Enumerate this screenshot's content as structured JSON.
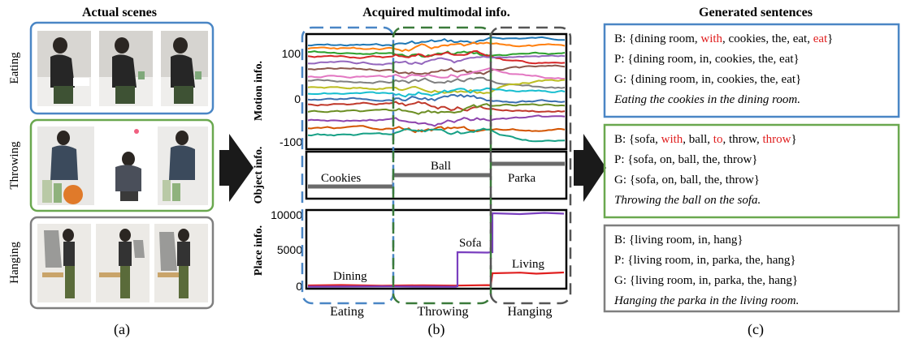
{
  "panel_a": {
    "title": "Actual scenes",
    "caption": "(a)",
    "scenes": [
      {
        "label": "Eating",
        "border_color": "#4a86c5"
      },
      {
        "label": "Throwing",
        "border_color": "#6aa84f"
      },
      {
        "label": "Hanging",
        "border_color": "#7f7f7f"
      }
    ]
  },
  "panel_b": {
    "title": "Acquired multimodal info.",
    "caption": "(b)",
    "motion": {
      "ylabel": "Motion info.",
      "ticks": [
        "100",
        "0",
        "-100"
      ]
    },
    "object": {
      "ylabel": "Object info.",
      "labels": [
        "Cookies",
        "Ball",
        "Parka"
      ]
    },
    "place": {
      "ylabel": "Place info.",
      "ticks": [
        "10000",
        "5000",
        "0"
      ],
      "labels": [
        "Dining",
        "Sofa",
        "Living"
      ]
    },
    "segments": [
      {
        "label": "Eating",
        "color": "#4a86c5"
      },
      {
        "label": "Throwing",
        "color": "#3a7a3a"
      },
      {
        "label": "Hanging",
        "color": "#555555"
      }
    ]
  },
  "panel_c": {
    "title": "Generated sentences",
    "caption": "(c)",
    "boxes": [
      {
        "border_color": "#4a86c5",
        "lines": [
          {
            "prefix": "B: {",
            "words": [
              "dining room",
              "with",
              "cookies",
              "the",
              "eat",
              "eat"
            ],
            "red": [
              false,
              true,
              false,
              false,
              false,
              true
            ],
            "suffix": "}"
          },
          {
            "prefix": "P: {",
            "words": [
              "dining room",
              "in",
              "cookies",
              "the",
              "eat"
            ],
            "red": [
              false,
              false,
              false,
              false,
              false
            ],
            "suffix": "}"
          },
          {
            "prefix": "G: {",
            "words": [
              "dining room",
              "in",
              "cookies",
              "the",
              "eat"
            ],
            "red": [
              false,
              false,
              false,
              false,
              false
            ],
            "suffix": "}"
          }
        ],
        "sentence": "Eating the cookies in the dining room."
      },
      {
        "border_color": "#6aa84f",
        "lines": [
          {
            "prefix": "B: {",
            "words": [
              "sofa",
              "with",
              "ball",
              "to",
              "throw",
              "throw"
            ],
            "red": [
              false,
              true,
              false,
              true,
              false,
              true
            ],
            "suffix": "}"
          },
          {
            "prefix": "P: {",
            "words": [
              "sofa",
              "on",
              "ball",
              "the",
              "throw"
            ],
            "red": [
              false,
              false,
              false,
              false,
              false
            ],
            "suffix": "}"
          },
          {
            "prefix": "G: {",
            "words": [
              "sofa",
              "on",
              "ball",
              "the",
              "throw"
            ],
            "red": [
              false,
              false,
              false,
              false,
              false
            ],
            "suffix": "}"
          }
        ],
        "sentence": "Throwing the ball on the sofa."
      },
      {
        "border_color": "#7f7f7f",
        "lines": [
          {
            "prefix": "B: {",
            "words": [
              "living room",
              "in",
              "hang"
            ],
            "red": [
              false,
              false,
              false
            ],
            "suffix": "}"
          },
          {
            "prefix": "P: {",
            "words": [
              "living room",
              "in",
              "parka",
              "the",
              "hang"
            ],
            "red": [
              false,
              false,
              false,
              false,
              false
            ],
            "suffix": "}"
          },
          {
            "prefix": "G: {",
            "words": [
              "living room",
              "in",
              "parka",
              "the",
              "hang"
            ],
            "red": [
              false,
              false,
              false,
              false,
              false
            ],
            "suffix": "}"
          }
        ],
        "sentence": "Hanging the parka in the living room."
      }
    ]
  },
  "colors": {
    "text_red": "#e02020",
    "object_bar": "#6b6b6b",
    "place_dining": "#e02020",
    "place_sofa": "#7a3fbf",
    "arrow": "#1a1a1a"
  }
}
